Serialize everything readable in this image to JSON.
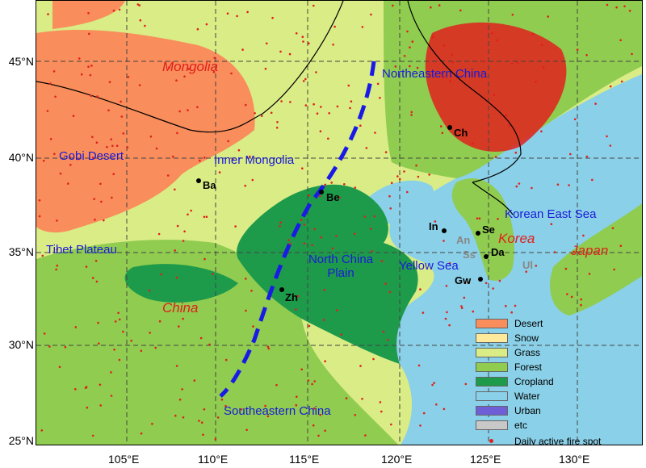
{
  "map": {
    "lat_ticks": [
      "45°N",
      "40°N",
      "35°N",
      "30°N",
      "25°N"
    ],
    "lon_ticks": [
      "105°E",
      "110°E",
      "115°E",
      "120°E",
      "125°E",
      "130°E"
    ],
    "regions": {
      "mongolia": "Mongolia",
      "gobi_desert": "Gobi Desert",
      "inner_mongolia": "Inner Mongolia",
      "northeastern_china": "Northeastern China",
      "tibet_plateau": "Tibet Plateau",
      "north_china_plain": "North China\nPlain",
      "china": "China",
      "southeastern_china": "Southeastern China",
      "yellow_sea": "Yellow Sea",
      "korean_east_sea": "Korean East Sea",
      "korea": "Korea",
      "japan": "Japan"
    },
    "cities": {
      "ba": "Ba",
      "be": "Be",
      "ch": "Ch",
      "zh": "Zh",
      "in": "In",
      "se": "Se",
      "an": "An",
      "ss": "Ss",
      "da": "Da",
      "gw": "Gw",
      "ul": "Ul"
    },
    "colors": {
      "desert": "#f98d5b",
      "snow": "#ffe99a",
      "grass": "#d9ec86",
      "forest": "#8fcc4f",
      "cropland": "#1e9a4b",
      "water": "#8ad0e8",
      "urban": "#6e5fd6",
      "etc": "#c8c8c8",
      "fire": "#e0201c",
      "divide_line": "#1a1ae6"
    }
  },
  "legend": {
    "items": [
      {
        "label": "Desert",
        "color": "#f98d5b"
      },
      {
        "label": "Snow",
        "color": "#ffe99a"
      },
      {
        "label": "Grass",
        "color": "#d9ec86"
      },
      {
        "label": "Forest",
        "color": "#8fcc4f"
      },
      {
        "label": "Cropland",
        "color": "#1e9a4b"
      },
      {
        "label": "Water",
        "color": "#8ad0e8"
      },
      {
        "label": "Urban",
        "color": "#6e5fd6"
      },
      {
        "label": "etc",
        "color": "#c8c8c8"
      }
    ],
    "fire_label": "Daily active fire spot"
  }
}
